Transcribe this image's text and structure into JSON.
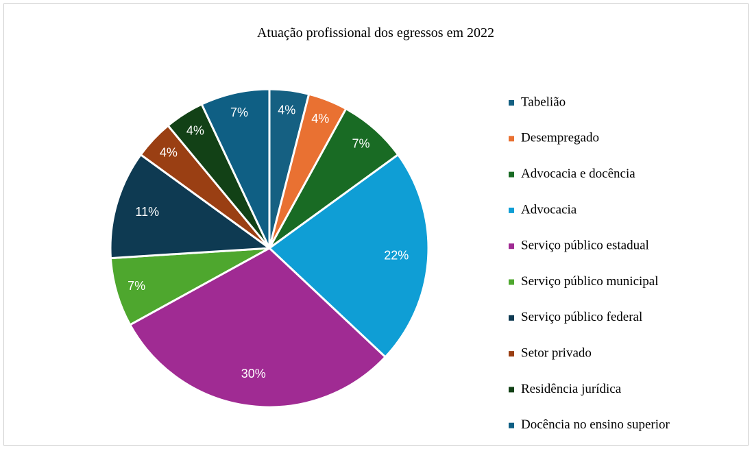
{
  "chart_data": {
    "type": "pie",
    "title": "Atuação profissional dos egressos em 2022",
    "categories": [
      "Tabelião",
      "Desempregado",
      "Advocacia e docência",
      "Advocacia",
      "Serviço público estadual",
      "Serviço público municipal",
      "Serviço público federal",
      "Setor privado",
      "Residência jurídica",
      "Docência no ensino superior"
    ],
    "values": [
      4,
      4,
      7,
      22,
      30,
      7,
      11,
      4,
      4,
      7
    ],
    "value_labels": [
      "4%",
      "4%",
      "7%",
      "22%",
      "30%",
      "7%",
      "11%",
      "4%",
      "4%",
      "7%"
    ],
    "colors": [
      "#156082",
      "#e97132",
      "#196b24",
      "#0f9ed5",
      "#a02b93",
      "#4ea72e",
      "#0e3a52",
      "#9a3f13",
      "#124116",
      "#0f5f84"
    ],
    "legend": "right"
  }
}
